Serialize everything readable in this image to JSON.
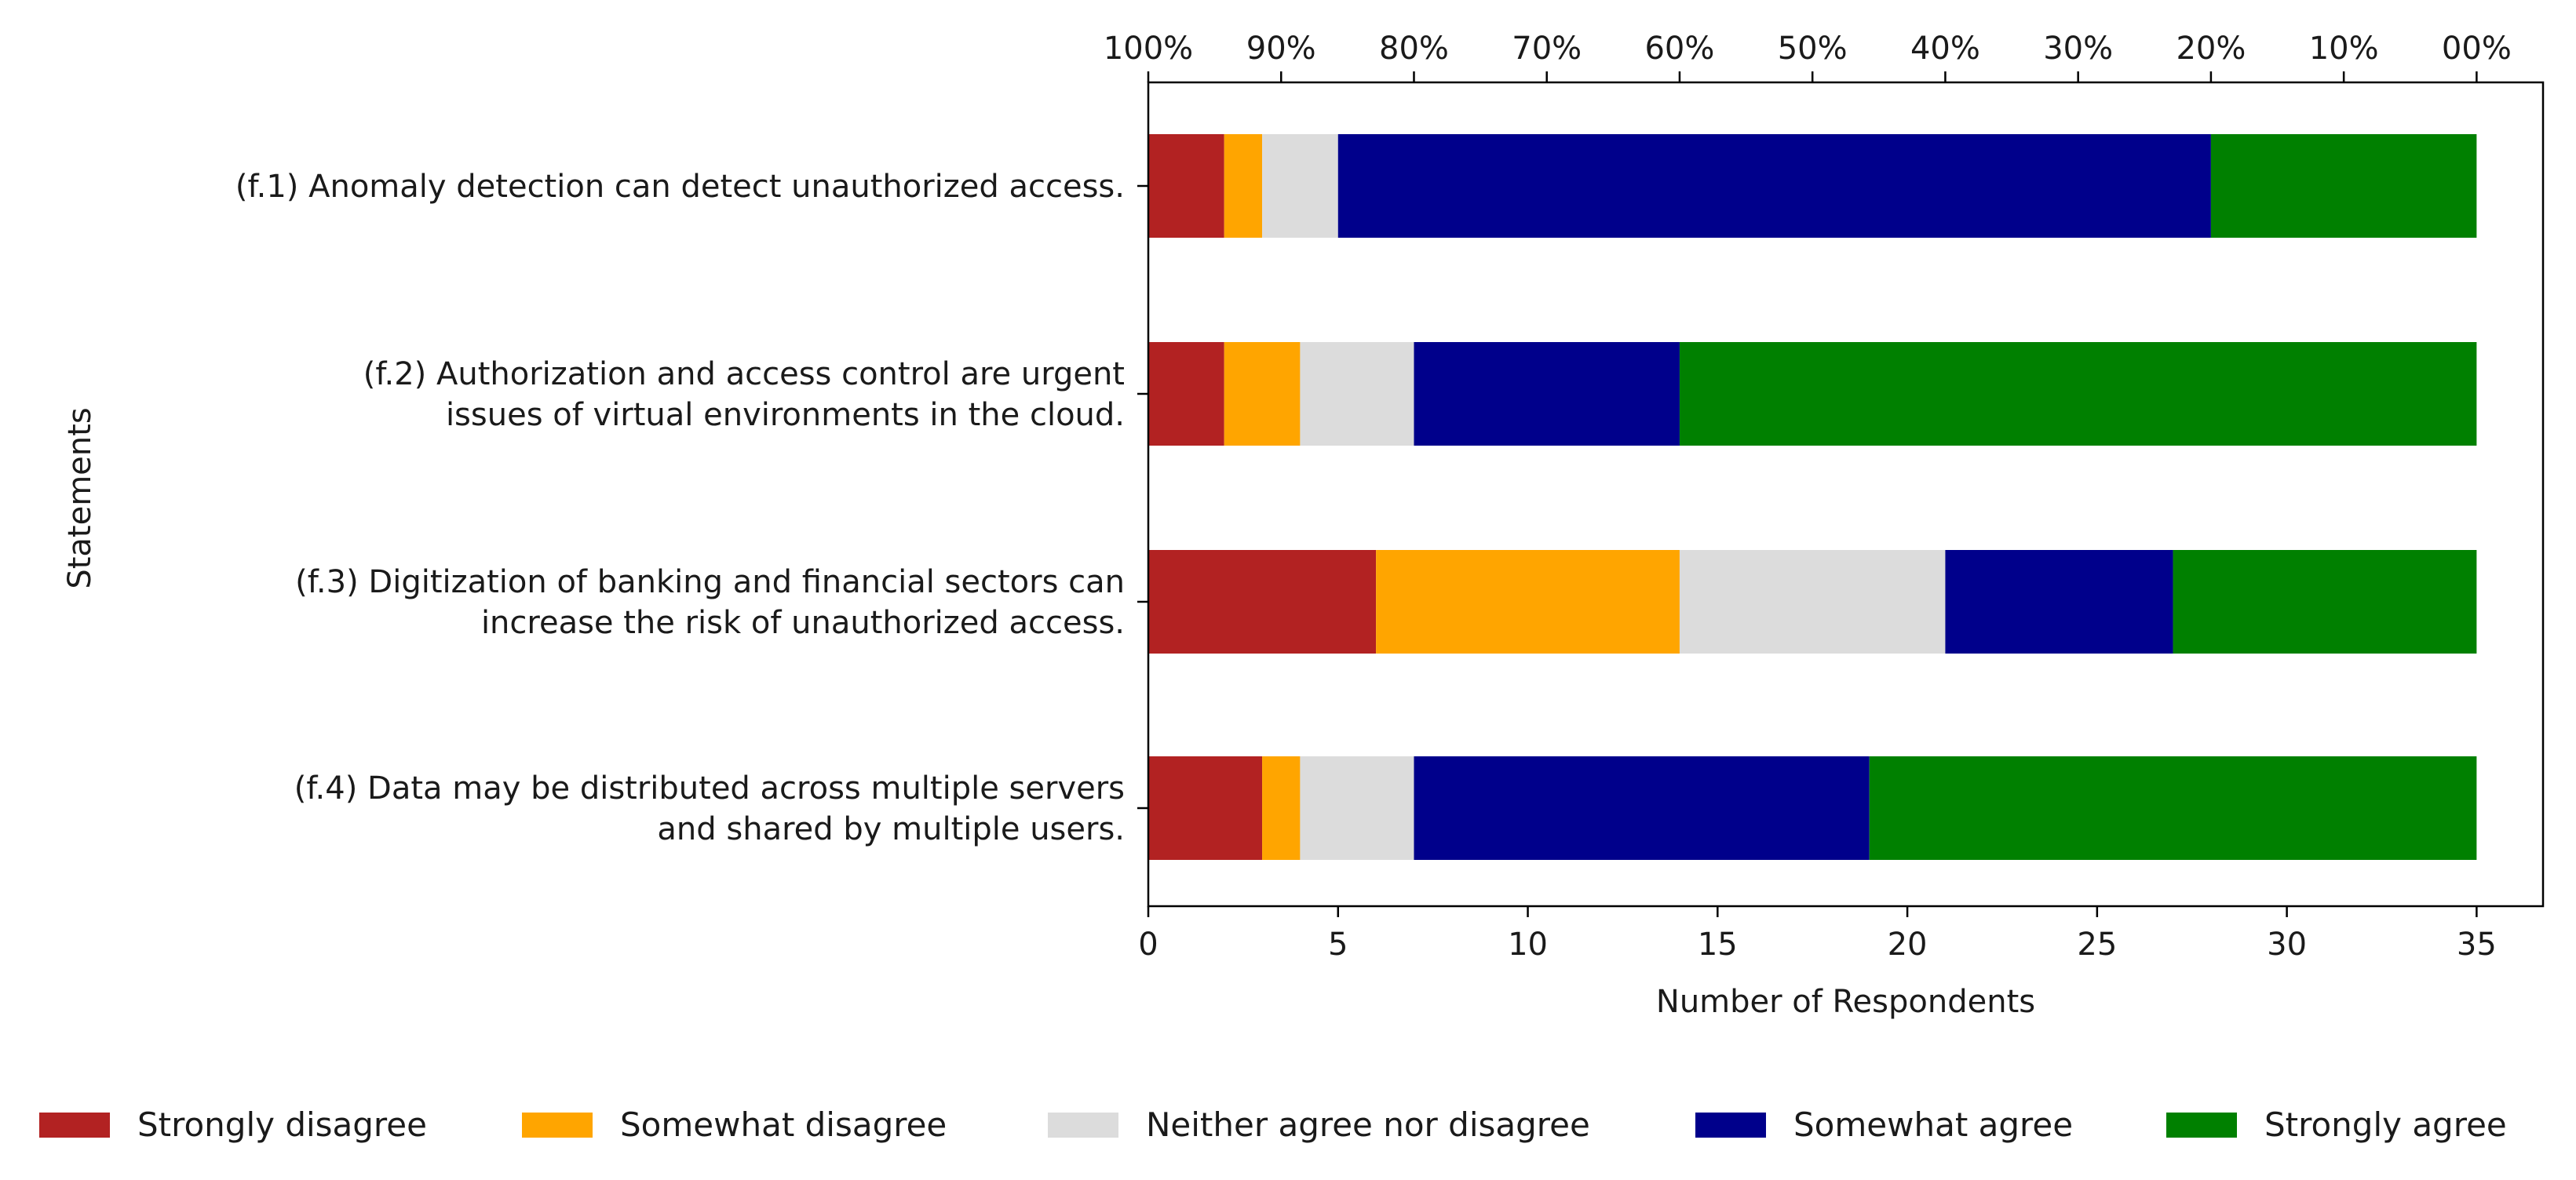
{
  "chart_data": {
    "type": "bar",
    "orientation": "horizontal",
    "stacked": true,
    "categories": [
      [
        "(f.1) Anomaly detection can detect unauthorized access."
      ],
      [
        "(f.2) Authorization and access control are urgent",
        "issues of virtual environments in the cloud."
      ],
      [
        "(f.3) Digitization of banking and financial sectors can",
        "increase the risk of unauthorized access."
      ],
      [
        "(f.4) Data may be distributed across multiple servers",
        "and shared by multiple users."
      ]
    ],
    "series": [
      {
        "name": "Strongly disagree",
        "color": "#b22222",
        "values": [
          2,
          2,
          6,
          3
        ]
      },
      {
        "name": "Somewhat disagree",
        "color": "#ffa500",
        "values": [
          1,
          2,
          8,
          1
        ]
      },
      {
        "name": "Neither agree nor disagree",
        "color": "#dcdcdc",
        "values": [
          2,
          3,
          7,
          3
        ]
      },
      {
        "name": "Somewhat agree",
        "color": "#00008b",
        "values": [
          23,
          7,
          6,
          12
        ]
      },
      {
        "name": "Strongly agree",
        "color": "#008000",
        "values": [
          7,
          21,
          8,
          16
        ]
      }
    ],
    "xlabel": "Number of Respondents",
    "ylabel": "Statements",
    "xlim": [
      0,
      36.75
    ],
    "xticks": [
      0,
      5,
      10,
      15,
      20,
      25,
      30,
      35
    ],
    "top_axis": {
      "tick_labels": [
        "100%",
        "90%",
        "80%",
        "70%",
        "60%",
        "50%",
        "40%",
        "30%",
        "20%",
        "10%",
        "00%"
      ],
      "tick_values": [
        0,
        3.5,
        7,
        10.5,
        14,
        17.5,
        21,
        24.5,
        28,
        31.5,
        35
      ]
    },
    "legend_position": "bottom",
    "grid": false
  }
}
